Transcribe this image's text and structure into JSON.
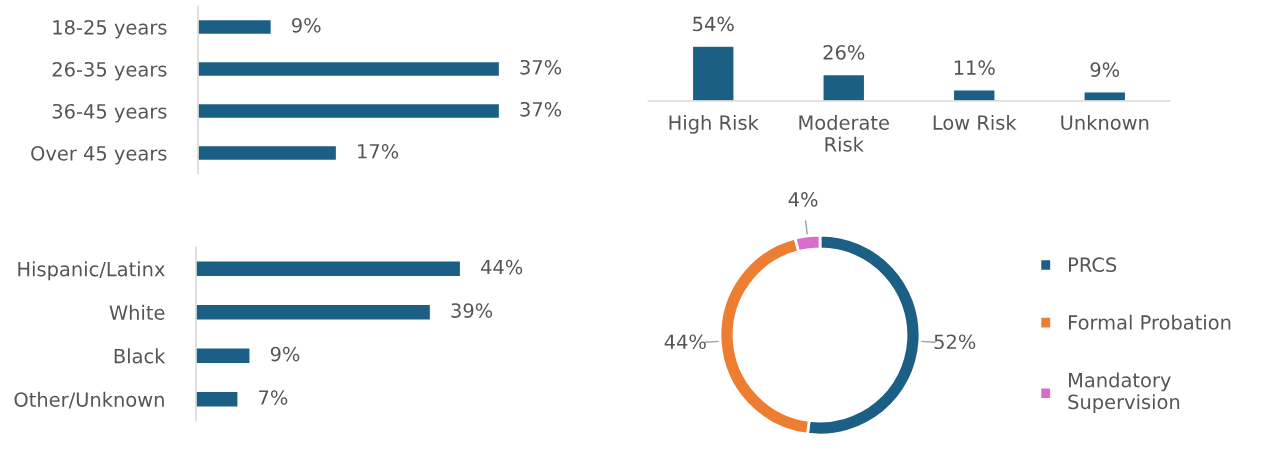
{
  "chart_data": [
    {
      "type": "bar",
      "orientation": "horizontal",
      "categories": [
        "18-25 years",
        "26-35 years",
        "36-45 years",
        "Over 45 years"
      ],
      "values": [
        9,
        37,
        37,
        17
      ],
      "color": "#1b5f85",
      "value_labels": [
        "9%",
        "37%",
        "37%",
        "17%"
      ]
    },
    {
      "type": "bar",
      "categories": [
        "High Risk",
        "Moderate\nRisk",
        "Low Risk",
        "Unknown"
      ],
      "values": [
        54,
        26,
        11,
        9
      ],
      "color": "#1b5f85",
      "value_labels": [
        "54%",
        "26%",
        "11%",
        "9%"
      ]
    },
    {
      "type": "bar",
      "orientation": "horizontal",
      "categories": [
        "Hispanic/Latinx",
        "White",
        "Black",
        "Other/Unknown"
      ],
      "values": [
        44,
        39,
        9,
        7
      ],
      "color": "#1b5f85",
      "value_labels": [
        "44%",
        "39%",
        "9%",
        "7%"
      ]
    },
    {
      "type": "donut",
      "categories": [
        "PRCS",
        "Formal Probation",
        "Mandatory\nSupervision"
      ],
      "values": [
        52,
        44,
        4
      ],
      "colors": [
        "#1b5f85",
        "#ed7d31",
        "#d86ecc"
      ],
      "value_labels": [
        "52%",
        "44%",
        "4%"
      ],
      "legend": "right"
    }
  ]
}
